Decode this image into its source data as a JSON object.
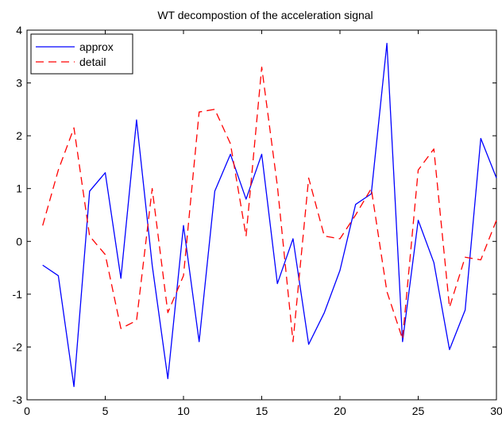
{
  "chart_data": {
    "type": "line",
    "title": "WT decompostion of the acceleration signal",
    "xlabel": "",
    "ylabel": "",
    "xlim": [
      0,
      30
    ],
    "ylim": [
      -3,
      4
    ],
    "xticks": [
      0,
      5,
      10,
      15,
      20,
      25,
      30
    ],
    "yticks": [
      -3,
      -2,
      -1,
      0,
      1,
      2,
      3,
      4
    ],
    "grid": false,
    "legend_position": "top-left",
    "x": [
      1,
      2,
      3,
      4,
      5,
      6,
      7,
      8,
      9,
      10,
      11,
      12,
      13,
      14,
      15,
      16,
      17,
      18,
      19,
      20,
      21,
      22,
      23,
      24,
      25,
      26,
      27,
      28,
      29,
      30
    ],
    "series": [
      {
        "name": "approx",
        "color": "#0000ff",
        "style": "solid",
        "values": [
          -0.45,
          -0.65,
          -2.75,
          0.95,
          1.3,
          -0.7,
          2.3,
          -0.45,
          -2.6,
          0.3,
          -1.9,
          0.95,
          1.65,
          0.8,
          1.65,
          -0.8,
          0.05,
          -1.95,
          -1.35,
          -0.55,
          0.7,
          0.9,
          3.75,
          -1.9,
          0.4,
          -0.4,
          -2.05,
          -1.3,
          1.95,
          1.2
        ]
      },
      {
        "name": "detail",
        "color": "#ff0000",
        "style": "dashed",
        "values": [
          0.3,
          1.35,
          2.15,
          0.1,
          -0.25,
          -1.65,
          -1.5,
          1.0,
          -1.35,
          -0.65,
          2.45,
          2.5,
          1.85,
          0.1,
          3.3,
          1.05,
          -1.9,
          1.2,
          0.1,
          0.05,
          0.5,
          1.0,
          -0.95,
          -1.85,
          1.35,
          1.75,
          -1.25,
          -0.3,
          -0.35,
          0.4
        ]
      }
    ]
  }
}
